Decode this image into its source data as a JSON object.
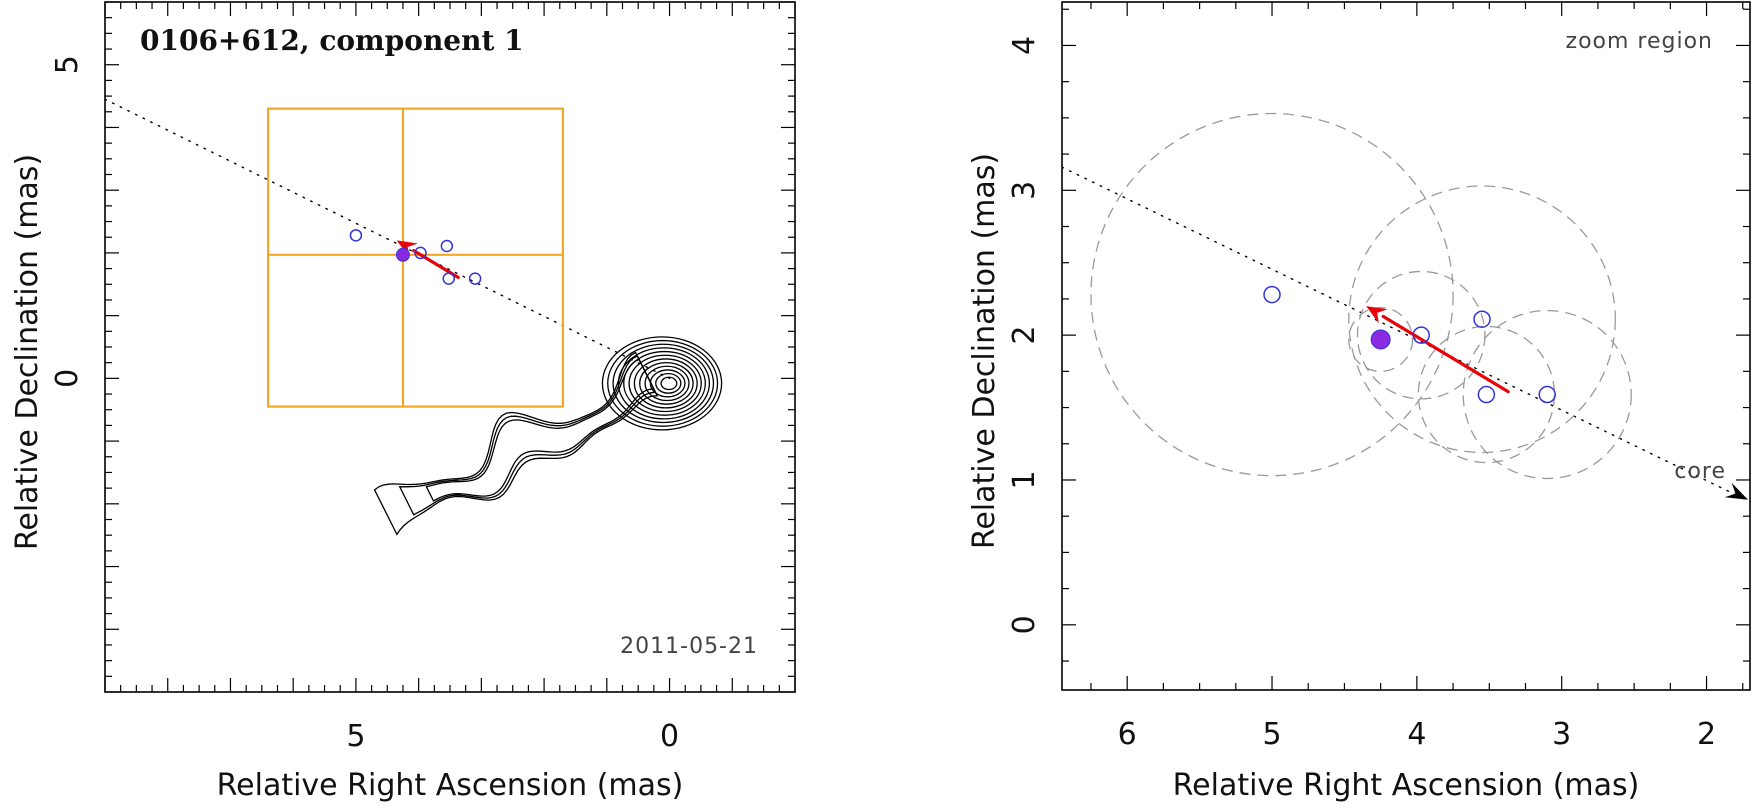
{
  "chart_data": [
    {
      "type": "scatter",
      "panel": "overview",
      "title": "0106+612, component 1",
      "date_label": "2011-05-21",
      "xlabel": "Relative Right Ascension (mas)",
      "ylabel": "Relative Declination (mas)",
      "xlim": [
        9.0,
        -2.0
      ],
      "ylim": [
        -5.0,
        6.0
      ],
      "xticks_major": [
        5,
        0
      ],
      "yticks_major": [
        5,
        0
      ],
      "core": [
        0,
        0
      ],
      "contour_levels": [
        0.25,
        0.31,
        0.37,
        0.45,
        0.54,
        0.65,
        0.78,
        0.94,
        1.13,
        1.37,
        1.64,
        1.95
      ],
      "jet_line": {
        "from": [
          9.0,
          4.45
        ],
        "to": [
          0,
          0
        ]
      },
      "zoom_box": {
        "x": [
          6.4,
          1.7
        ],
        "y": [
          -0.45,
          4.3
        ],
        "cross": [
          4.25,
          1.97
        ]
      },
      "points_open": [
        [
          5.0,
          2.28
        ],
        [
          3.97,
          2.0
        ],
        [
          3.55,
          2.11
        ],
        [
          3.52,
          1.59
        ],
        [
          3.1,
          1.59
        ]
      ],
      "point_filled": [
        4.25,
        1.97
      ],
      "velocity_arrow": {
        "from": [
          3.37,
          1.61
        ],
        "to": [
          4.35,
          2.2
        ]
      },
      "colors": {
        "points": "#3333dd",
        "filled": "#8a2be2",
        "arrow": "#e8000b",
        "box": "#f5a623"
      }
    },
    {
      "type": "scatter",
      "panel": "zoom",
      "note": "zoom region",
      "core_label": "core",
      "xlabel": "Relative Right Ascension (mas)",
      "ylabel": "Relative Declination (mas)",
      "xlim": [
        6.45,
        1.7
      ],
      "ylim": [
        -0.45,
        4.3
      ],
      "xticks_major": [
        6,
        5,
        4,
        3,
        2
      ],
      "yticks_major": [
        0,
        1,
        2,
        3,
        4
      ],
      "jet_line": {
        "from": [
          6.45,
          3.16
        ],
        "to": [
          1.7,
          0.85
        ]
      },
      "points_open": [
        [
          5.0,
          2.28
        ],
        [
          3.97,
          2.0
        ],
        [
          3.55,
          2.11
        ],
        [
          3.52,
          1.59
        ],
        [
          3.1,
          1.59
        ]
      ],
      "point_filled": [
        4.25,
        1.97
      ],
      "uncertainty_circles": [
        {
          "center": [
            5.0,
            2.28
          ],
          "r": 1.25
        },
        {
          "center": [
            3.97,
            2.0
          ],
          "r": 0.44
        },
        {
          "center": [
            3.55,
            2.11
          ],
          "r": 0.92
        },
        {
          "center": [
            3.52,
            1.59
          ],
          "r": 0.47
        },
        {
          "center": [
            3.1,
            1.59
          ],
          "r": 0.58
        },
        {
          "center": [
            4.25,
            1.97
          ],
          "r": 0.22
        }
      ],
      "velocity_arrow": {
        "from": [
          3.37,
          1.61
        ],
        "to": [
          4.35,
          2.2
        ]
      },
      "colors": {
        "points": "#3333dd",
        "filled": "#8a2be2",
        "arrow": "#e8000b",
        "circles": "#9a9a9a"
      }
    }
  ]
}
